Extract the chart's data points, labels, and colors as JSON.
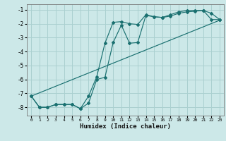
{
  "xlabel": "Humidex (Indice chaleur)",
  "background_color": "#cce8e8",
  "grid_color": "#aad0d0",
  "line_color": "#1a7070",
  "xlim": [
    -0.5,
    23.5
  ],
  "ylim": [
    -8.6,
    -0.6
  ],
  "xticks": [
    0,
    1,
    2,
    3,
    4,
    5,
    6,
    7,
    8,
    9,
    10,
    11,
    12,
    13,
    14,
    15,
    16,
    17,
    18,
    19,
    20,
    21,
    22,
    23
  ],
  "yticks": [
    -8,
    -7,
    -6,
    -5,
    -4,
    -3,
    -2,
    -1
  ],
  "series1_x": [
    0,
    1,
    2,
    3,
    4,
    5,
    6,
    7,
    8,
    9,
    10,
    11,
    12,
    13,
    14,
    15,
    16,
    17,
    18,
    19,
    20,
    21,
    22,
    23
  ],
  "series1_y": [
    -7.2,
    -8.0,
    -8.0,
    -7.8,
    -7.8,
    -7.8,
    -8.1,
    -7.7,
    -6.0,
    -5.85,
    -3.35,
    -2.1,
    -3.4,
    -3.35,
    -1.4,
    -1.5,
    -1.55,
    -1.45,
    -1.25,
    -1.15,
    -1.1,
    -1.05,
    -1.25,
    -1.7
  ],
  "series2_x": [
    0,
    1,
    2,
    3,
    4,
    5,
    6,
    7,
    8,
    9,
    10,
    11,
    12,
    13,
    14,
    15,
    16,
    17,
    18,
    19,
    20,
    21,
    22,
    23
  ],
  "series2_y": [
    -7.2,
    -8.0,
    -8.0,
    -7.8,
    -7.8,
    -7.8,
    -8.1,
    -7.2,
    -5.8,
    -3.4,
    -1.9,
    -1.85,
    -2.0,
    -2.05,
    -1.35,
    -1.5,
    -1.55,
    -1.35,
    -1.15,
    -1.05,
    -1.05,
    -1.05,
    -1.7,
    -1.7
  ],
  "series3_x": [
    0,
    23
  ],
  "series3_y": [
    -7.2,
    -1.75
  ]
}
